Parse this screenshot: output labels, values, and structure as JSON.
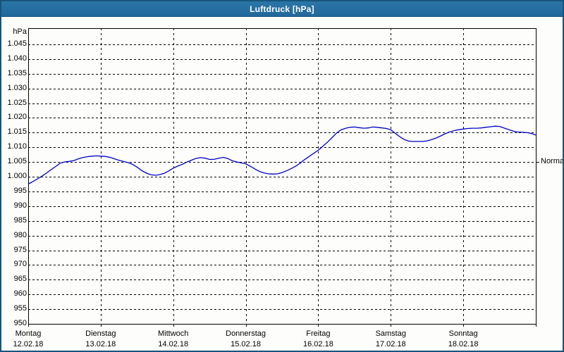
{
  "window": {
    "title": "Luftdruck [hPa]"
  },
  "colors": {
    "titlebar": "#24719f",
    "window_border": "#17547c",
    "background": "#fdfdfc",
    "grid": "#000000",
    "line": "#0000c8",
    "text": "#000000"
  },
  "chart_data": {
    "type": "line",
    "title": "Luftdruck [hPa]",
    "unit_label": "hPa",
    "ylim": [
      950,
      1050.5
    ],
    "ytick_min": 950,
    "ytick_max": 1045,
    "ytick_step": 5,
    "ytick_labels": [
      "950",
      "955",
      "960",
      "965",
      "970",
      "975",
      "980",
      "985",
      "990",
      "995",
      "1.000",
      "1.005",
      "1.010",
      "1.015",
      "1.020",
      "1.025",
      "1.030",
      "1.035",
      "1.040",
      "1.045"
    ],
    "grid": "dashed",
    "legend_position": "none",
    "x_range_days": [
      0,
      7
    ],
    "x_days": [
      {
        "name": "Montag",
        "date": "12.02.18"
      },
      {
        "name": "Dienstag",
        "date": "13.02.18"
      },
      {
        "name": "Mittwoch",
        "date": "14.02.18"
      },
      {
        "name": "Donnerstag",
        "date": "15.02.18"
      },
      {
        "name": "Freitag",
        "date": "16.02.18"
      },
      {
        "name": "Samstag",
        "date": "17.02.18"
      },
      {
        "name": "Sonntag",
        "date": "18.02.18"
      }
    ],
    "normal_marker": {
      "label": "Normal",
      "value": 1005
    },
    "series": [
      {
        "name": "Luftdruck",
        "color": "#0000c8",
        "points": [
          [
            0.0,
            997.5
          ],
          [
            0.06,
            998.3
          ],
          [
            0.13,
            999.3
          ],
          [
            0.19,
            1000.2
          ],
          [
            0.25,
            1001.2
          ],
          [
            0.31,
            1002.3
          ],
          [
            0.38,
            1003.5
          ],
          [
            0.44,
            1004.6
          ],
          [
            0.5,
            1005.0
          ],
          [
            0.56,
            1005.2
          ],
          [
            0.63,
            1005.5
          ],
          [
            0.69,
            1006.1
          ],
          [
            0.75,
            1006.5
          ],
          [
            0.81,
            1006.8
          ],
          [
            0.88,
            1007.0
          ],
          [
            0.94,
            1007.1
          ],
          [
            1.0,
            1007.0
          ],
          [
            1.06,
            1006.9
          ],
          [
            1.13,
            1006.6
          ],
          [
            1.19,
            1006.1
          ],
          [
            1.25,
            1005.6
          ],
          [
            1.31,
            1005.2
          ],
          [
            1.38,
            1004.8
          ],
          [
            1.44,
            1004.2
          ],
          [
            1.5,
            1003.3
          ],
          [
            1.56,
            1002.2
          ],
          [
            1.63,
            1001.2
          ],
          [
            1.69,
            1000.7
          ],
          [
            1.75,
            1000.5
          ],
          [
            1.81,
            1000.7
          ],
          [
            1.88,
            1001.2
          ],
          [
            1.94,
            1002.0
          ],
          [
            2.0,
            1002.9
          ],
          [
            2.06,
            1003.6
          ],
          [
            2.13,
            1004.3
          ],
          [
            2.19,
            1005.0
          ],
          [
            2.25,
            1005.6
          ],
          [
            2.31,
            1006.2
          ],
          [
            2.38,
            1006.5
          ],
          [
            2.44,
            1006.3
          ],
          [
            2.5,
            1005.9
          ],
          [
            2.56,
            1005.9
          ],
          [
            2.63,
            1006.3
          ],
          [
            2.69,
            1006.6
          ],
          [
            2.75,
            1006.2
          ],
          [
            2.81,
            1005.5
          ],
          [
            2.88,
            1005.0
          ],
          [
            2.94,
            1004.7
          ],
          [
            3.0,
            1004.4
          ],
          [
            3.06,
            1003.6
          ],
          [
            3.13,
            1002.6
          ],
          [
            3.19,
            1001.8
          ],
          [
            3.25,
            1001.3
          ],
          [
            3.31,
            1001.0
          ],
          [
            3.38,
            1000.9
          ],
          [
            3.44,
            1001.0
          ],
          [
            3.5,
            1001.4
          ],
          [
            3.56,
            1002.0
          ],
          [
            3.63,
            1002.8
          ],
          [
            3.69,
            1003.6
          ],
          [
            3.75,
            1004.6
          ],
          [
            3.81,
            1005.8
          ],
          [
            3.88,
            1007.0
          ],
          [
            3.94,
            1008.0
          ],
          [
            4.0,
            1009.0
          ],
          [
            4.06,
            1010.3
          ],
          [
            4.13,
            1011.8
          ],
          [
            4.19,
            1013.3
          ],
          [
            4.25,
            1014.8
          ],
          [
            4.31,
            1015.9
          ],
          [
            4.38,
            1016.5
          ],
          [
            4.44,
            1016.8
          ],
          [
            4.5,
            1016.9
          ],
          [
            4.56,
            1016.7
          ],
          [
            4.63,
            1016.5
          ],
          [
            4.69,
            1016.6
          ],
          [
            4.75,
            1016.9
          ],
          [
            4.81,
            1016.8
          ],
          [
            4.88,
            1016.6
          ],
          [
            4.94,
            1016.4
          ],
          [
            5.0,
            1016.0
          ],
          [
            5.06,
            1014.8
          ],
          [
            5.13,
            1013.5
          ],
          [
            5.19,
            1012.6
          ],
          [
            5.25,
            1012.1
          ],
          [
            5.31,
            1012.0
          ],
          [
            5.38,
            1012.0
          ],
          [
            5.44,
            1012.0
          ],
          [
            5.5,
            1012.2
          ],
          [
            5.56,
            1012.6
          ],
          [
            5.63,
            1013.2
          ],
          [
            5.69,
            1013.9
          ],
          [
            5.75,
            1014.6
          ],
          [
            5.81,
            1015.2
          ],
          [
            5.88,
            1015.7
          ],
          [
            5.94,
            1016.0
          ],
          [
            6.0,
            1016.2
          ],
          [
            6.06,
            1016.4
          ],
          [
            6.13,
            1016.5
          ],
          [
            6.19,
            1016.5
          ],
          [
            6.25,
            1016.6
          ],
          [
            6.31,
            1016.8
          ],
          [
            6.38,
            1017.0
          ],
          [
            6.44,
            1017.2
          ],
          [
            6.5,
            1017.1
          ],
          [
            6.56,
            1016.6
          ],
          [
            6.63,
            1016.0
          ],
          [
            6.69,
            1015.5
          ],
          [
            6.75,
            1015.2
          ],
          [
            6.81,
            1015.1
          ],
          [
            6.88,
            1015.0
          ],
          [
            6.94,
            1014.7
          ],
          [
            7.0,
            1014.2
          ]
        ]
      }
    ]
  }
}
